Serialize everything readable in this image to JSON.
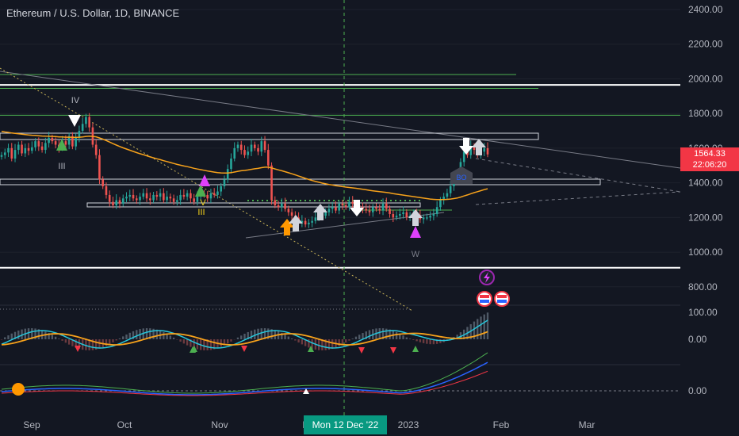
{
  "header": {
    "title": "Ethereum / U.S. Dollar, 1D, BINANCE"
  },
  "badges": {
    "price": "1564.33",
    "countdown": "22:06:20",
    "crosshair_date": "Mon 12 Dec '22"
  },
  "colors": {
    "background": "#131722",
    "up": "#26a69a",
    "down": "#ef5350",
    "ema": "#f7a21b",
    "sma": "#787b86",
    "macd": "#2962ff",
    "signal": "#f7a21b",
    "badge_red": "#f23645",
    "badge_green": "#089981"
  },
  "chart_data": {
    "type": "candlestick",
    "ylim": [
      700,
      2450
    ],
    "yticks": [
      "2400.00",
      "2200.00",
      "2000.00",
      "1800.00",
      "1600.00",
      "1400.00",
      "1200.00",
      "1000.00",
      "800.00"
    ],
    "xticks": [
      "Sep",
      "Oct",
      "Nov",
      "Dec",
      "2023",
      "Feb",
      "Mar"
    ],
    "wave_labels": [
      "IV",
      "III",
      "V",
      "III",
      "W"
    ],
    "marker_labels": {
      "bo": "BO"
    },
    "oscillator1_ticks": [
      "100.00",
      "0.00"
    ],
    "oscillator2_ticks": [
      "0.00"
    ],
    "horizontal_levels": [
      {
        "price": 2025,
        "color": "#4caf50"
      },
      {
        "price": 1965,
        "color": "#ffffff"
      },
      {
        "price": 1945,
        "color": "#4caf50"
      },
      {
        "price": 1790,
        "color": "#4caf50"
      },
      {
        "price": 910,
        "color": "#ffffff"
      }
    ],
    "candles_close": [
      1560,
      1575,
      1600,
      1540,
      1590,
      1620,
      1570,
      1600,
      1585,
      1605,
      1640,
      1610,
      1590,
      1630,
      1660,
      1640,
      1620,
      1600,
      1640,
      1620,
      1670,
      1610,
      1660,
      1700,
      1740,
      1780,
      1720,
      1620,
      1560,
      1420,
      1380,
      1330,
      1290,
      1270,
      1300,
      1280,
      1310,
      1320,
      1330,
      1310,
      1300,
      1320,
      1340,
      1310,
      1300,
      1330,
      1320,
      1340,
      1300,
      1320,
      1310,
      1290,
      1300,
      1330,
      1320,
      1340,
      1310,
      1290,
      1320,
      1340,
      1330,
      1310,
      1340,
      1330,
      1350,
      1380,
      1420,
      1480,
      1540,
      1600,
      1620,
      1590,
      1560,
      1580,
      1620,
      1600,
      1580,
      1640,
      1590,
      1500,
      1300,
      1270,
      1260,
      1280,
      1250,
      1230,
      1210,
      1200,
      1170,
      1180,
      1160,
      1170,
      1180,
      1200,
      1220,
      1210,
      1230,
      1250,
      1260,
      1240,
      1280,
      1270,
      1260,
      1290,
      1280,
      1270,
      1260,
      1250,
      1240,
      1230,
      1260,
      1250,
      1240,
      1280,
      1250,
      1220,
      1200,
      1210,
      1220,
      1230,
      1200,
      1210,
      1220,
      1210,
      1190,
      1200,
      1200,
      1210,
      1220,
      1260,
      1300,
      1320,
      1340,
      1380,
      1410,
      1450,
      1520,
      1580,
      1560,
      1610,
      1590,
      1560,
      1580,
      1600,
      1564
    ]
  }
}
